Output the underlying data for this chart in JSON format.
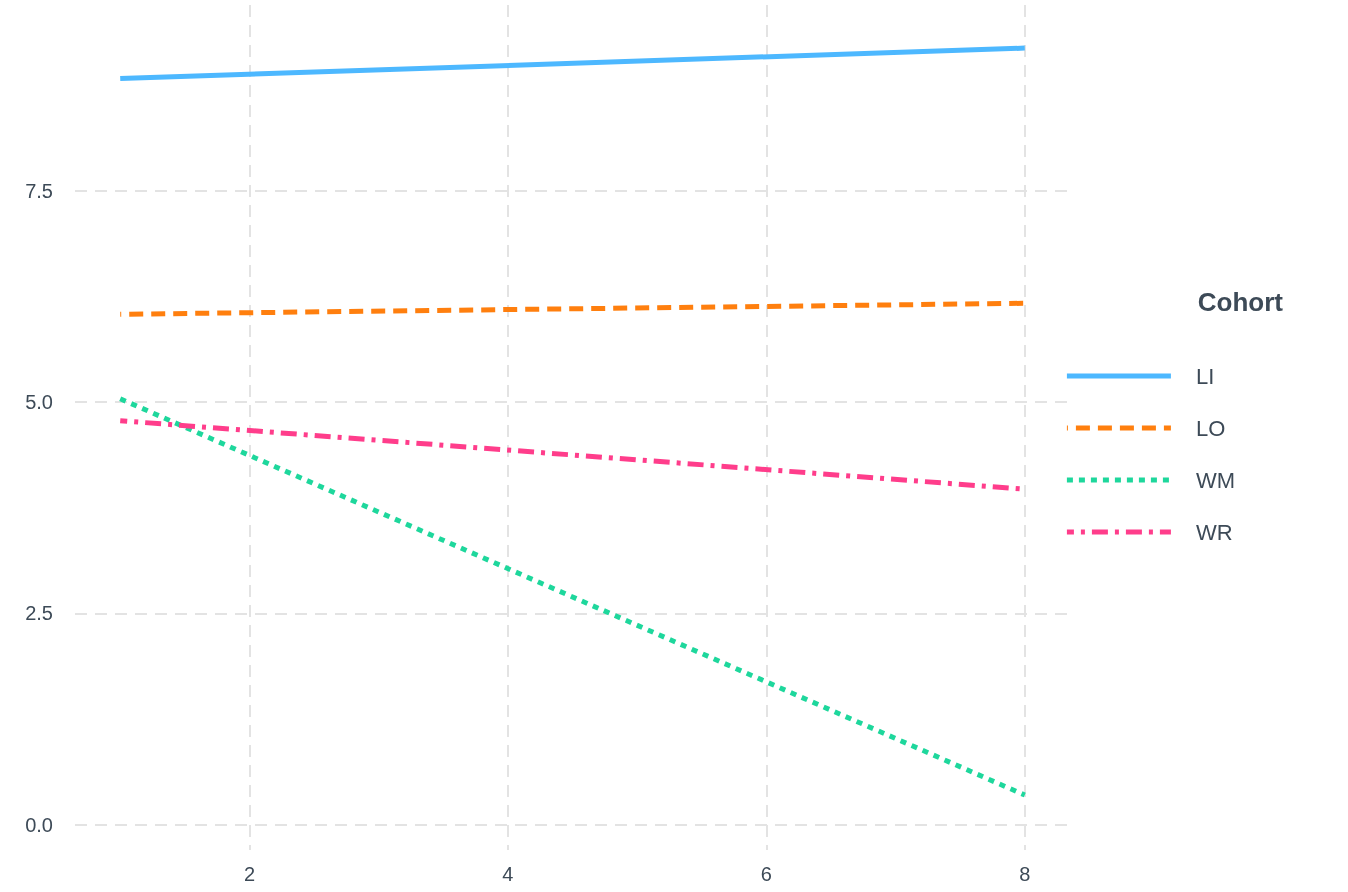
{
  "chart_data": {
    "type": "line",
    "legend_title": "Cohort",
    "x": [
      1,
      8
    ],
    "series": [
      {
        "name": "LI",
        "color": "#4db8ff",
        "line_style": "solid",
        "values": [
          8.83,
          9.19
        ]
      },
      {
        "name": "LO",
        "color": "#ff7f0e",
        "line_style": "dashed",
        "values": [
          6.04,
          6.17
        ]
      },
      {
        "name": "WM",
        "color": "#1ed79c",
        "line_style": "dotted",
        "values": [
          5.04,
          0.35
        ]
      },
      {
        "name": "WR",
        "color": "#ff3d8b",
        "line_style": "dashdot",
        "values": [
          4.78,
          3.97
        ]
      }
    ],
    "xlim": [
      0.65,
      8.35
    ],
    "xticks": [
      2,
      4,
      6,
      8
    ],
    "ylim": [
      -0.3,
      9.7
    ],
    "yticks": [
      {
        "value": 0,
        "label": "0.0"
      },
      2.5,
      {
        "value": 5,
        "label": "5.0"
      },
      7.5
    ],
    "grid": true,
    "legend": "right",
    "marker": "none"
  }
}
